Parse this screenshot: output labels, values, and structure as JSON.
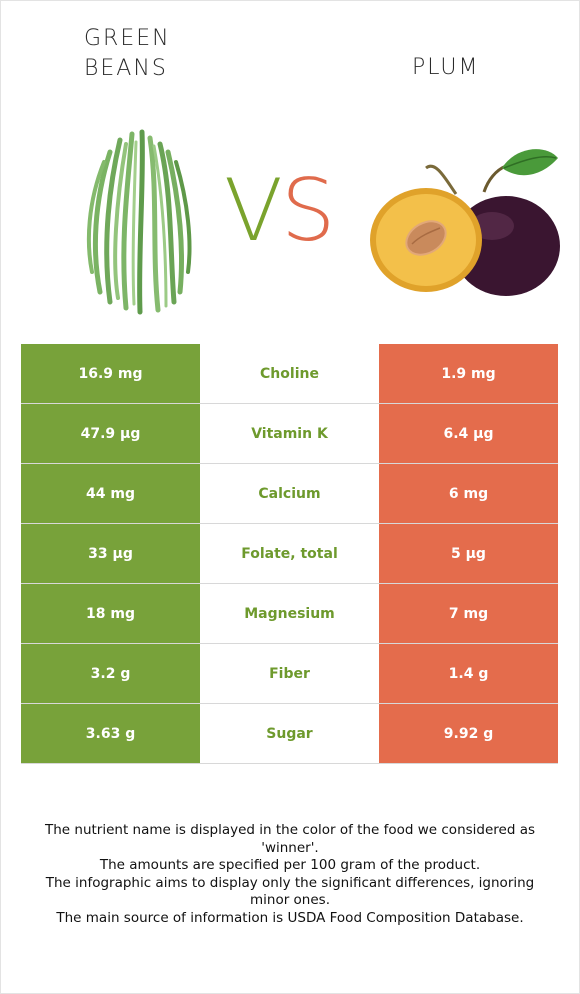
{
  "left_food": {
    "name": "Green Beans"
  },
  "right_food": {
    "name": "Plum"
  },
  "vs": {
    "v": "V",
    "s": "S"
  },
  "colors": {
    "left": "#78a23a",
    "right": "#e46c4c",
    "winner_text": "#6e9a2d"
  },
  "rows": [
    {
      "left": "16.9 mg",
      "nutrient": "Choline",
      "right": "1.9 mg"
    },
    {
      "left": "47.9 µg",
      "nutrient": "Vitamin K",
      "right": "6.4 µg"
    },
    {
      "left": "44 mg",
      "nutrient": "Calcium",
      "right": "6 mg"
    },
    {
      "left": "33 µg",
      "nutrient": "Folate, total",
      "right": "5 µg"
    },
    {
      "left": "18 mg",
      "nutrient": "Magnesium",
      "right": "7 mg"
    },
    {
      "left": "3.2 g",
      "nutrient": "Fiber",
      "right": "1.4 g"
    },
    {
      "left": "3.63 g",
      "nutrient": "Sugar",
      "right": "9.92 g"
    }
  ],
  "footnotes": [
    "The nutrient name is displayed in the color of the food we considered as 'winner'.",
    "The amounts are specified per 100 gram of the product.",
    "The infographic aims to display only the significant differences, ignoring minor ones.",
    "The main source of information is USDA Food Composition Database."
  ]
}
